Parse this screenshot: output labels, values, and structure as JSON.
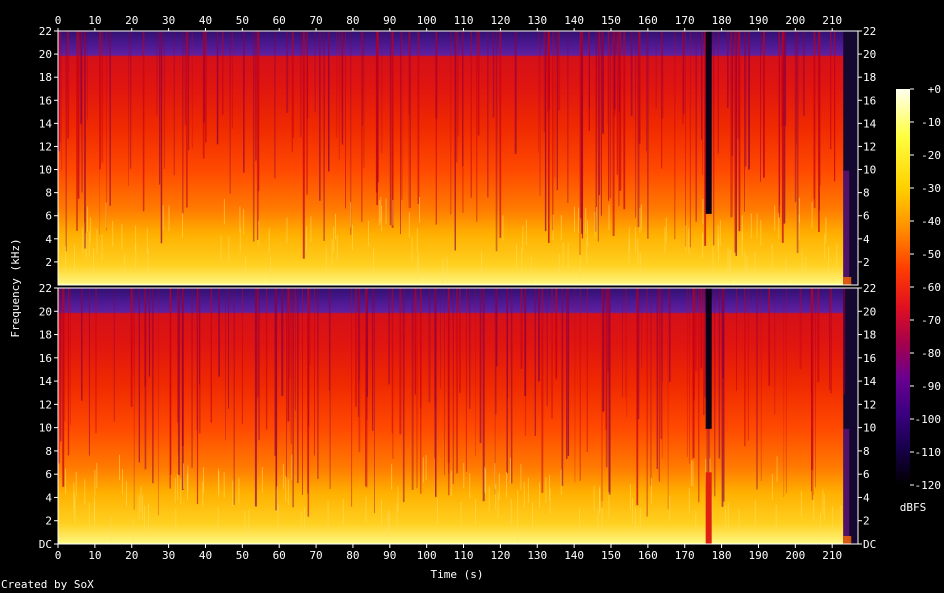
{
  "chart_data": {
    "type": "heatmap",
    "title": "",
    "xlabel": "Time (s)",
    "ylabel": "Frequency (kHz)",
    "xlim": [
      0,
      217
    ],
    "ylim": [
      0,
      22
    ],
    "x_ticks": [
      0,
      10,
      20,
      30,
      40,
      50,
      60,
      70,
      80,
      90,
      100,
      110,
      120,
      130,
      140,
      150,
      160,
      170,
      180,
      190,
      200,
      210
    ],
    "y_tick_labels": [
      "DC",
      "2",
      "4",
      "6",
      "8",
      "10",
      "12",
      "14",
      "16",
      "18",
      "20",
      "22"
    ],
    "channels": 2,
    "colorbar": {
      "label": "dBFS",
      "range": [
        -120,
        0
      ],
      "ticks": [
        "+0",
        "-10",
        "-20",
        "-30",
        "-40",
        "-50",
        "-60",
        "-70",
        "-80",
        "-90",
        "-100",
        "-110",
        "-120"
      ],
      "gradient": [
        "#fffff0",
        "#ffff40",
        "#ffd000",
        "#ff9000",
        "#ff4000",
        "#e01020",
        "#a00050",
        "#6a0090",
        "#3a0080",
        "#1a0050",
        "#000000"
      ]
    },
    "content_end_s": 213,
    "cutoff_khz": 20,
    "silent_moment_s": 176.5,
    "energy_profile": [
      {
        "band": "0-6 kHz",
        "level_dbfs": -30
      },
      {
        "band": "6-16 kHz",
        "level_dbfs": -50
      },
      {
        "band": "16-20 kHz",
        "level_dbfs": -58
      },
      {
        "band": "20-22 kHz",
        "level_dbfs": -95
      }
    ]
  },
  "footer": {
    "credit": "Created by SoX"
  }
}
